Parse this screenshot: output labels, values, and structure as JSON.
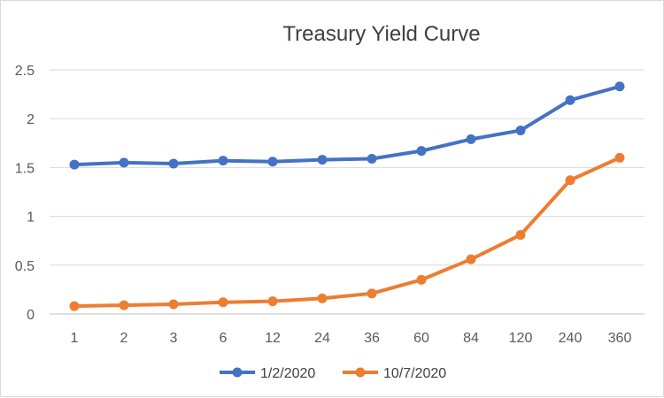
{
  "chart_data": {
    "type": "line",
    "title": "Treasury Yield Curve",
    "xlabel": "",
    "ylabel": "",
    "categories": [
      "1",
      "2",
      "3",
      "6",
      "12",
      "24",
      "36",
      "60",
      "84",
      "120",
      "240",
      "360"
    ],
    "series": [
      {
        "name": "1/2/2020",
        "color": "#4472C4",
        "values": [
          1.53,
          1.55,
          1.54,
          1.57,
          1.56,
          1.58,
          1.59,
          1.67,
          1.79,
          1.88,
          2.19,
          2.33
        ]
      },
      {
        "name": "10/7/2020",
        "color": "#ED7D31",
        "values": [
          0.08,
          0.09,
          0.1,
          0.12,
          0.13,
          0.16,
          0.21,
          0.35,
          0.56,
          0.81,
          1.37,
          1.6
        ]
      }
    ],
    "ylim": [
      0,
      2.5
    ],
    "yticks": [
      "0",
      "0.5",
      "1",
      "1.5",
      "2",
      "2.5"
    ],
    "grid": true,
    "legend": "bottom"
  }
}
